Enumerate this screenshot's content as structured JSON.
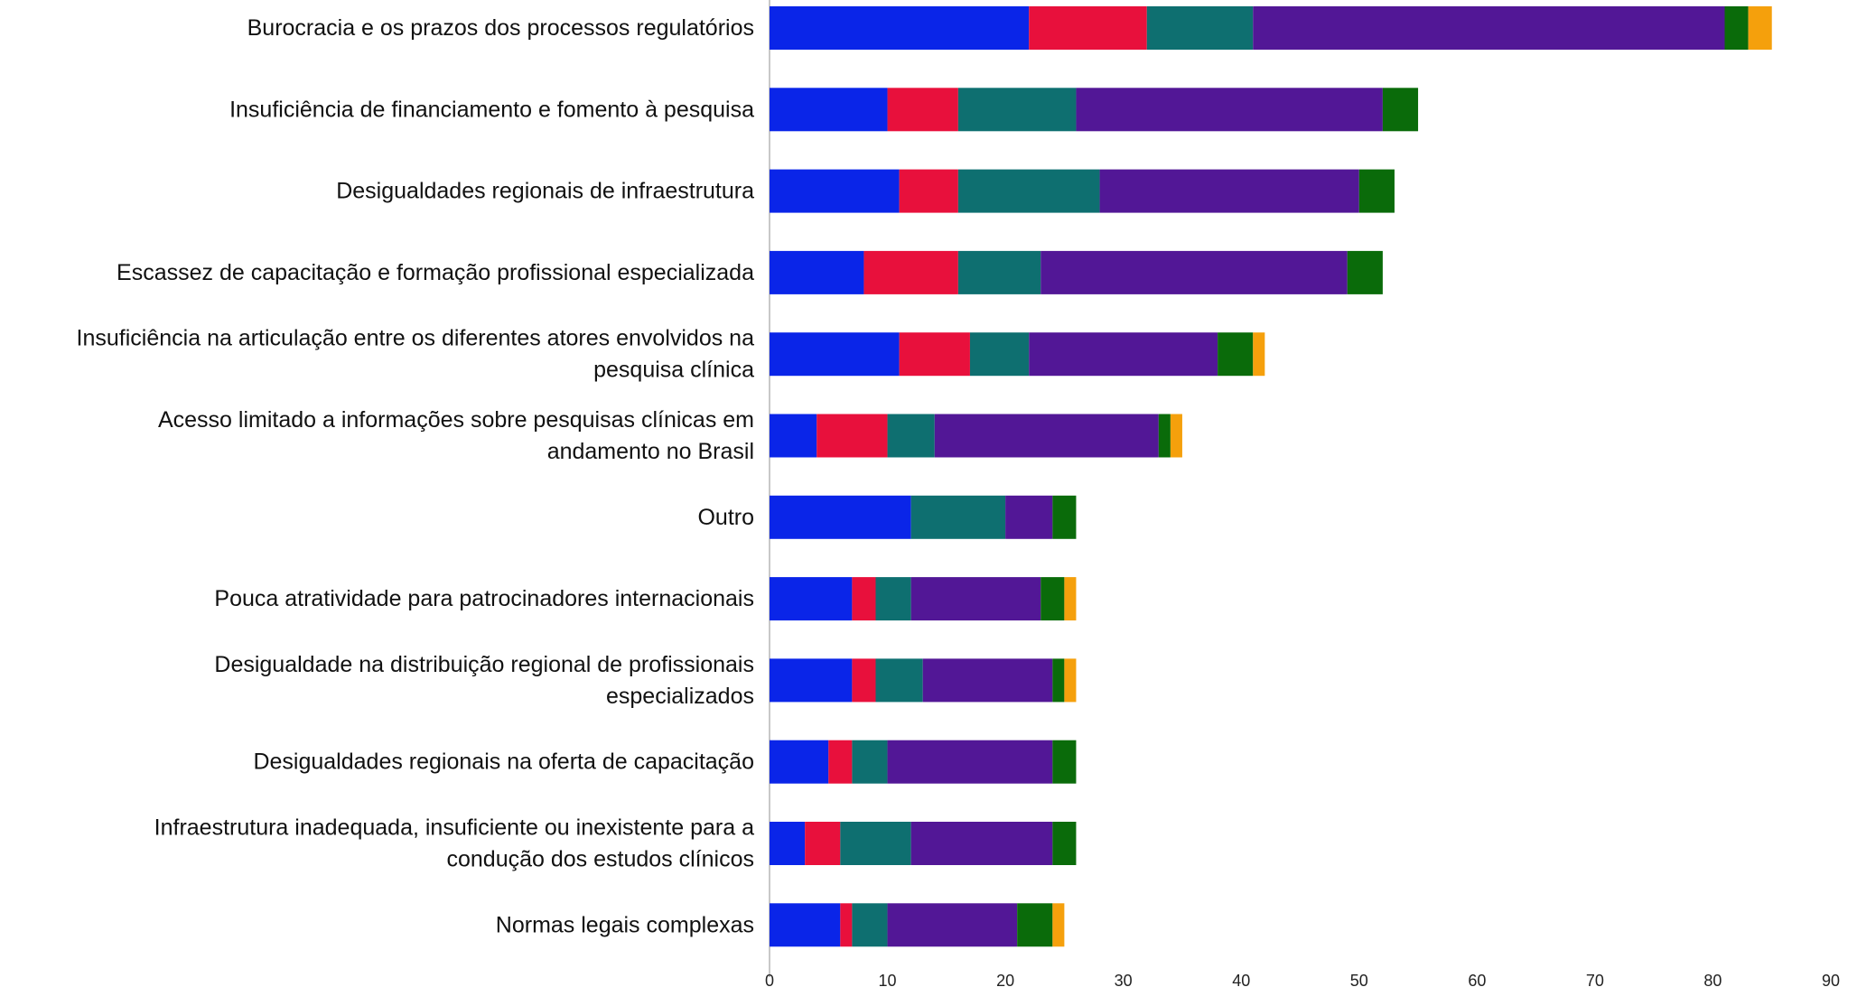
{
  "chart_data": {
    "type": "bar",
    "orientation": "horizontal",
    "stacked": true,
    "title": "",
    "xlabel": "",
    "ylabel": "",
    "xlim": [
      0,
      90
    ],
    "x_ticks": [
      0,
      10,
      20,
      30,
      40,
      50,
      60,
      70,
      80,
      90
    ],
    "grid": false,
    "legend": "none",
    "categories": [
      [
        "Burocracia e os prazos dos processos regulatórios"
      ],
      [
        "Insuficiência de financiamento e fomento à pesquisa"
      ],
      [
        "Desigualdades regionais de infraestrutura"
      ],
      [
        "Escassez de capacitação e formação profissional especializada"
      ],
      [
        "Insuficiência na articulação entre os diferentes atores envolvidos na",
        "pesquisa clínica"
      ],
      [
        "Acesso limitado a informações sobre pesquisas clínicas em",
        "andamento no Brasil"
      ],
      [
        "Outro"
      ],
      [
        "Pouca atratividade para patrocinadores internacionais"
      ],
      [
        "Desigualdade na distribuição regional de profissionais",
        "especializados"
      ],
      [
        "Desigualdades regionais na oferta de capacitação"
      ],
      [
        "Infraestrutura inadequada, insuficiente ou inexistente para a",
        "condução dos estudos clínicos"
      ],
      [
        "Normas legais complexas"
      ]
    ],
    "series": [
      {
        "color": "#0a25e8",
        "values": [
          22,
          10,
          11,
          8,
          11,
          4,
          12,
          7,
          7,
          5,
          3,
          6
        ]
      },
      {
        "color": "#e8103c",
        "values": [
          10,
          6,
          5,
          8,
          6,
          6,
          0,
          2,
          2,
          2,
          3,
          1
        ]
      },
      {
        "color": "#0e6f70",
        "values": [
          9,
          10,
          12,
          7,
          5,
          4,
          8,
          3,
          4,
          3,
          6,
          3
        ]
      },
      {
        "color": "#521796",
        "values": [
          40,
          26,
          22,
          26,
          16,
          19,
          4,
          11,
          11,
          14,
          12,
          11
        ]
      },
      {
        "color": "#0a6b0a",
        "values": [
          2,
          3,
          3,
          3,
          3,
          1,
          2,
          2,
          1,
          2,
          2,
          3
        ]
      },
      {
        "color": "#f5a00c",
        "values": [
          2,
          0,
          0,
          0,
          1,
          1,
          0,
          1,
          1,
          0,
          0,
          1
        ]
      }
    ]
  }
}
